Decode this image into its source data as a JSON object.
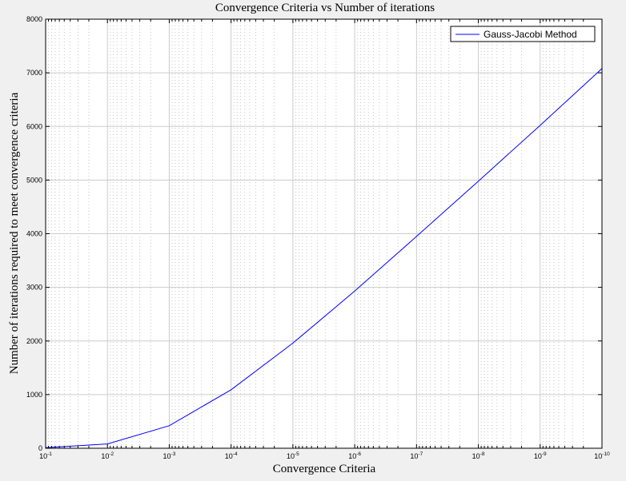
{
  "chart_data": {
    "type": "line",
    "title": "Convergence Criteria vs Number of iterations",
    "xlabel": "Convergence Criteria",
    "ylabel": "Number of iterations required to meet convergence criteria",
    "xscale": "log",
    "x_direction": "reversed",
    "xlim": [
      0.1,
      1e-10
    ],
    "ylim": [
      0,
      8000
    ],
    "grid": true,
    "minor_grid": true,
    "legend_position": "top-right",
    "colors": {
      "series": "#0000ff",
      "grid": "#cccccc",
      "background": "#ffffff",
      "figure": "#f0f0f0"
    },
    "x_ticks": [
      {
        "base": "10",
        "exp": "-1",
        "value": 0.1
      },
      {
        "base": "10",
        "exp": "-2",
        "value": 0.01
      },
      {
        "base": "10",
        "exp": "-3",
        "value": 0.001
      },
      {
        "base": "10",
        "exp": "-4",
        "value": 0.0001
      },
      {
        "base": "10",
        "exp": "-5",
        "value": 1e-05
      },
      {
        "base": "10",
        "exp": "-6",
        "value": 1e-06
      },
      {
        "base": "10",
        "exp": "-7",
        "value": 1e-07
      },
      {
        "base": "10",
        "exp": "-8",
        "value": 1e-08
      },
      {
        "base": "10",
        "exp": "-9",
        "value": 1e-09
      },
      {
        "base": "10",
        "exp": "-10",
        "value": 1e-10
      }
    ],
    "y_ticks": [
      0,
      1000,
      2000,
      3000,
      4000,
      5000,
      6000,
      7000,
      8000
    ],
    "series": [
      {
        "name": "Gauss-Jacobi Method",
        "color": "#0000ff",
        "x": [
          0.1,
          0.01,
          0.001,
          0.0001,
          1e-05,
          1e-06,
          1e-07,
          1e-08,
          1e-09,
          1e-10
        ],
        "values": [
          10,
          80,
          420,
          1090,
          1960,
          2930,
          3950,
          4980,
          6020,
          7080
        ]
      }
    ]
  }
}
